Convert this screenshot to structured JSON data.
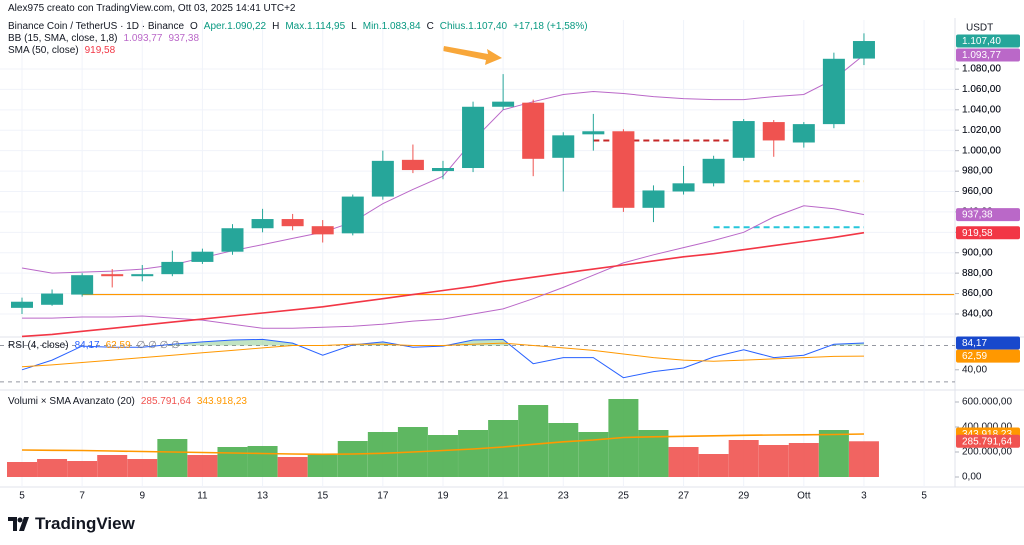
{
  "header": "Alex975 creato con TradingView.com, Ott 03, 2025 14:41 UTC+2",
  "currency": "USDT",
  "brand": "TradingView",
  "chart_data": [
    {
      "type": "candlestick",
      "title": "Binance Coin / TetherUS · 1D · Binance",
      "legend_items": [
        {
          "key": "O",
          "text": "Aper.1.090,22"
        },
        {
          "key": "H",
          "text": "Max.1.114,95"
        },
        {
          "key": "L",
          "text": "Min.1.083,84"
        },
        {
          "key": "C",
          "text": "Chius.1.107,40"
        }
      ],
      "change": "+17,18 (+1,58%)",
      "categories": [
        "5",
        null,
        "7",
        null,
        "9",
        null,
        "11",
        null,
        "13",
        null,
        "15",
        null,
        "17",
        null,
        "19",
        null,
        "21",
        null,
        "23",
        null,
        "25",
        null,
        "27",
        null,
        "29",
        null,
        "Ott",
        null,
        "3"
      ],
      "extra_categories": [
        null,
        "5"
      ],
      "open": [
        846,
        849,
        859,
        879,
        877,
        879,
        891,
        901,
        924,
        933,
        926,
        919,
        955,
        991,
        980,
        983,
        1043,
        1047,
        993,
        1016,
        1019,
        944,
        960,
        968,
        993,
        1028,
        1008,
        1026,
        1090.22
      ],
      "high": [
        856,
        864,
        880,
        884,
        888,
        902,
        904,
        928,
        943,
        938,
        932,
        957,
        1000,
        1006,
        990,
        1048,
        1075,
        1050,
        1018,
        1036,
        1021,
        966,
        985,
        995,
        1031,
        1030,
        1028,
        1096,
        1114.95
      ],
      "low": [
        840,
        848,
        857,
        866,
        872,
        877,
        889,
        898,
        920,
        922,
        910,
        917,
        952,
        978,
        972,
        979,
        1040,
        975,
        960,
        1000,
        940,
        930,
        957,
        965,
        990,
        994,
        1003,
        1022,
        1083.84
      ],
      "close": [
        852,
        860,
        878,
        877,
        879,
        891,
        901,
        924,
        933,
        926,
        918,
        955,
        990,
        981,
        983,
        1043,
        1048,
        992,
        1015,
        1019,
        944,
        961,
        968,
        992,
        1029,
        1010,
        1026,
        1090,
        1107.4
      ],
      "last_label": "1.107,40",
      "up_color": "#26a69a",
      "down_color": "#ef5350",
      "overlays": [
        {
          "name": "BB (15, SMA, close, 1,8)",
          "color": "#ba68c8",
          "upper": [
            885,
            880,
            881,
            882,
            884,
            888,
            895,
            902,
            908,
            914,
            920,
            930,
            948,
            962,
            975,
            1010,
            1040,
            1048,
            1055,
            1058,
            1056,
            1053,
            1051,
            1050,
            1050,
            1053,
            1055,
            1070,
            1093.77
          ],
          "upper_label": "1.093,77",
          "lower": [
            836,
            836,
            837,
            837,
            838,
            836,
            834,
            830,
            826,
            826,
            827,
            828,
            830,
            833,
            835,
            840,
            845,
            855,
            866,
            878,
            890,
            898,
            905,
            912,
            920,
            935,
            946,
            943,
            937.38
          ],
          "lower_label": "937,38"
        },
        {
          "name": "SMA (50, close)",
          "color": "#f23645",
          "values": [
            818,
            820,
            823,
            826,
            829,
            832,
            835,
            838,
            841,
            844,
            847,
            851,
            855,
            859,
            863,
            867,
            872,
            876,
            880,
            884,
            888,
            892,
            896,
            899,
            903,
            907,
            911,
            915,
            919.58
          ],
          "value_label": "919,58"
        }
      ],
      "levels": [
        {
          "value": 859,
          "color": "#ff9800",
          "dash": false
        },
        {
          "value": 1010,
          "color": "#c62828",
          "dash": true
        },
        {
          "value": 970,
          "color": "#fbc02d",
          "dash": true
        },
        {
          "value": 925,
          "color": "#26c6da",
          "dash": true
        }
      ],
      "ylim": [
        819.4,
        1128
      ],
      "yticks": [
        {
          "value": 840,
          "label": "840,00"
        },
        {
          "value": 860,
          "label": "860,00"
        },
        {
          "value": 880,
          "label": "880,00"
        },
        {
          "value": 900,
          "label": "900,00"
        },
        {
          "value": 920,
          "label": "920,00"
        },
        {
          "value": 940,
          "label": "940,00"
        },
        {
          "value": 960,
          "label": "960,00"
        },
        {
          "value": 980,
          "label": "980,00"
        },
        {
          "value": 1000,
          "label": "1.000,00"
        },
        {
          "value": 1020,
          "label": "1.020,00"
        },
        {
          "value": 1040,
          "label": "1.040,00"
        },
        {
          "value": 1060,
          "label": "1.060,00"
        },
        {
          "value": 1080,
          "label": "1.080,00"
        }
      ],
      "grid": true
    },
    {
      "type": "line",
      "title": "RSI (4, close)",
      "series": [
        {
          "color": "#2962ff",
          "values": [
            40,
            56,
            79,
            77,
            77,
            82,
            86,
            89,
            90,
            84,
            64,
            81,
            86,
            77,
            79,
            89,
            90,
            50,
            60,
            60,
            27,
            37,
            43,
            61,
            73,
            60,
            64,
            82,
            84.17
          ],
          "last_label": "84,17",
          "tag_color": "#1848cc"
        },
        {
          "color": "#ff9800",
          "values": [
            45,
            48,
            52,
            56,
            60,
            64,
            68,
            72,
            76,
            80,
            80,
            82,
            82,
            80,
            80,
            82,
            84,
            80,
            76,
            72,
            66,
            60,
            56,
            54,
            56,
            58,
            60,
            62,
            62.59
          ],
          "last_label": "62,59",
          "tag_color": "#ff9800"
        }
      ],
      "extra": "∅ ∅ ∅ ∅",
      "bands": [
        80,
        20
      ],
      "ylim": [
        10,
        94
      ],
      "yticks": [
        {
          "value": 40,
          "label": "40,00"
        }
      ]
    },
    {
      "type": "bar",
      "title": "Volumi × SMA Avanzato (20)",
      "values": [
        120000,
        144000,
        128000,
        176000,
        144000,
        304000,
        176000,
        240000,
        248000,
        160000,
        176000,
        288000,
        360000,
        400000,
        336000,
        376000,
        456000,
        576000,
        432000,
        360000,
        624000,
        376000,
        240000,
        184000,
        296000,
        256000,
        272000,
        376000,
        285791.64
      ],
      "colors": [
        "#f05350",
        "#f05350",
        "#f05350",
        "#f05350",
        "#f05350",
        "#4caf50",
        "#f05350",
        "#4caf50",
        "#4caf50",
        "#f05350",
        "#4caf50",
        "#4caf50",
        "#4caf50",
        "#4caf50",
        "#4caf50",
        "#4caf50",
        "#4caf50",
        "#4caf50",
        "#4caf50",
        "#4caf50",
        "#4caf50",
        "#4caf50",
        "#f05350",
        "#f05350",
        "#f05350",
        "#f05350",
        "#f05350",
        "#4caf50",
        "#f05350"
      ],
      "last_label": "285.791,64",
      "sma": {
        "color": "#ff9800",
        "values": [
          216000,
          214000,
          212000,
          208000,
          204000,
          200000,
          196000,
          192000,
          188000,
          184000,
          182000,
          184000,
          190000,
          200000,
          212000,
          224000,
          240000,
          262000,
          282000,
          296000,
          316000,
          322000,
          326000,
          330000,
          334000,
          336000,
          338000,
          340000,
          343918.23
        ],
        "last_label": "343.918,23"
      },
      "ylim": [
        -64000,
        680000
      ],
      "yticks": [
        {
          "value": 0,
          "label": "0,00"
        },
        {
          "value": 200000,
          "label": "200.000,00"
        },
        {
          "value": 400000,
          "label": "400.000,00"
        },
        {
          "value": 600000,
          "label": "600.000,00"
        }
      ]
    }
  ]
}
